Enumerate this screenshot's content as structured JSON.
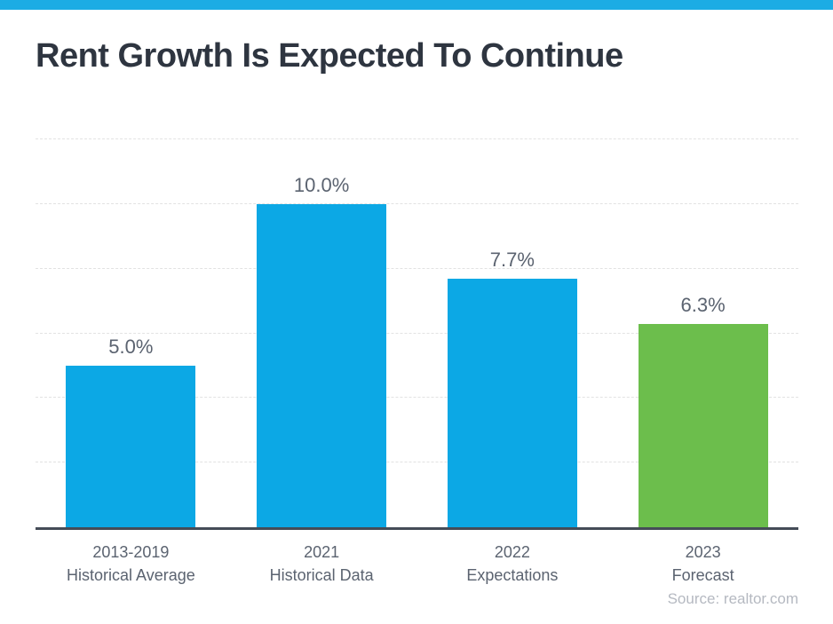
{
  "page": {
    "accent_bar_color": "#1CACE4",
    "background_color": "#ffffff"
  },
  "header": {
    "title": "Rent Growth Is Expected To Continue",
    "title_color": "#2E3540"
  },
  "chart_data": {
    "type": "bar",
    "title": "Rent Growth Is Expected To Continue",
    "categories": [
      "2013-2019 Historical Average",
      "2021 Historical Data",
      "2022 Expectations",
      "2023 Forecast"
    ],
    "category_lines": [
      [
        "2013-2019",
        "Historical Average"
      ],
      [
        "2021",
        "Historical Data"
      ],
      [
        "2022",
        "Expectations"
      ],
      [
        "2023",
        "Forecast"
      ]
    ],
    "values": [
      5.0,
      10.0,
      7.7,
      6.3
    ],
    "value_labels": [
      "5.0%",
      "10.0%",
      "7.7%",
      "6.3%"
    ],
    "bar_colors": [
      "#0CA8E5",
      "#0CA8E5",
      "#0CA8E5",
      "#6CBE4C"
    ],
    "xlabel": "",
    "ylabel": "",
    "ylim": [
      0,
      12
    ],
    "gridlines": [
      2,
      4,
      6,
      8,
      10,
      12
    ],
    "grid": true,
    "grid_color": "#E2E2E2",
    "axis_color": "#454C57",
    "label_color": "#5B6370",
    "legend_position": "none"
  },
  "footer": {
    "source_label": "Source: realtor.com",
    "source_color": "#B5B9C1"
  }
}
